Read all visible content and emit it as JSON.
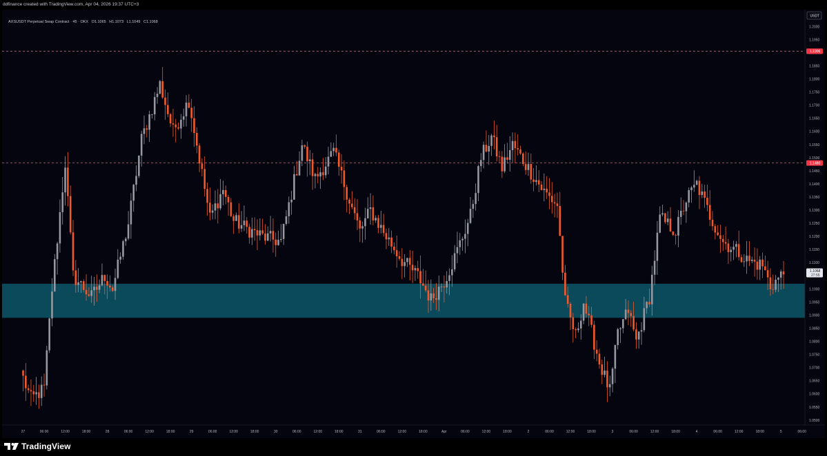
{
  "header": {
    "credit": "ddfinance created with TradingView.com, Apr 04, 2026 19:37 UTC+3"
  },
  "legend": {
    "symbol": "AXSUSDT Perpetual Swap Contract · 45 · OKX",
    "open": "O1.1065",
    "high": "H1.1073",
    "low": "L1.1049",
    "close": "C1.1068"
  },
  "currency_button": "USDT",
  "footer": {
    "brand": "TradingView"
  },
  "colors": {
    "background": "#050510",
    "up": "#9598a1",
    "down": "#f2592a",
    "zone": "#0b4a5a",
    "resistance_tag": "#f23645",
    "neutral_tag": "#f23645",
    "dashed_line": "#d0606a"
  },
  "chart_data": {
    "type": "candlestick",
    "symbol": "AXSUSDT",
    "timeframe": "45",
    "exchange": "OKX",
    "ylim": [
      1.046,
      1.2055
    ],
    "grid": false,
    "y_ticks": [
      "1.2000",
      "1.1950",
      "1.1900",
      "1.1850",
      "1.1800",
      "1.1750",
      "1.1700",
      "1.1650",
      "1.1600",
      "1.1550",
      "1.1500",
      "1.1450",
      "1.1400",
      "1.1350",
      "1.1300",
      "1.1250",
      "1.1200",
      "1.1150",
      "1.1100",
      "1.1050",
      "1.1000",
      "1.0950",
      "1.0900",
      "1.0850",
      "1.0800",
      "1.0750",
      "1.0700",
      "1.0650",
      "1.0600",
      "1.0550",
      "1.0500"
    ],
    "x_ticks": [
      {
        "label": "27",
        "t": 0
      },
      {
        "label": "06:00",
        "t": 8
      },
      {
        "label": "12:00",
        "t": 16
      },
      {
        "label": "18:00",
        "t": 24
      },
      {
        "label": "28",
        "t": 32
      },
      {
        "label": "06:00",
        "t": 40
      },
      {
        "label": "12:00",
        "t": 48
      },
      {
        "label": "18:00",
        "t": 56
      },
      {
        "label": "29",
        "t": 64
      },
      {
        "label": "06:00",
        "t": 72
      },
      {
        "label": "12:00",
        "t": 80
      },
      {
        "label": "18:00",
        "t": 88
      },
      {
        "label": "30",
        "t": 96
      },
      {
        "label": "06:00",
        "t": 104
      },
      {
        "label": "12:00",
        "t": 112
      },
      {
        "label": "18:00",
        "t": 120
      },
      {
        "label": "31",
        "t": 128
      },
      {
        "label": "06:00",
        "t": 136
      },
      {
        "label": "12:00",
        "t": 144
      },
      {
        "label": "18:00",
        "t": 152
      },
      {
        "label": "Apr",
        "t": 160
      },
      {
        "label": "06:00",
        "t": 168
      },
      {
        "label": "12:00",
        "t": 176
      },
      {
        "label": "18:00",
        "t": 184
      },
      {
        "label": "2",
        "t": 192
      },
      {
        "label": "06:00",
        "t": 200
      },
      {
        "label": "12:00",
        "t": 208
      },
      {
        "label": "18:00",
        "t": 216
      },
      {
        "label": "3",
        "t": 224
      },
      {
        "label": "06:00",
        "t": 232
      },
      {
        "label": "12:00",
        "t": 240
      },
      {
        "label": "18:00",
        "t": 248
      },
      {
        "label": "4",
        "t": 256
      },
      {
        "label": "06:00",
        "t": 264
      },
      {
        "label": "12:00",
        "t": 272
      },
      {
        "label": "18:00",
        "t": 280
      },
      {
        "label": "5",
        "t": 288
      },
      {
        "label": "06:00",
        "t": 296
      }
    ],
    "levels": [
      {
        "price": 1.1906,
        "label": "1.1906",
        "style": "dashed"
      },
      {
        "price": 1.148,
        "label": "1.1480",
        "style": "dashed"
      }
    ],
    "zone": {
      "from": 1.089,
      "to": 1.102
    },
    "last_price": {
      "price": 1.1068,
      "label": "1.1068",
      "countdown": "27:55"
    },
    "anchors": [
      [
        0,
        1.066
      ],
      [
        3,
        1.058
      ],
      [
        8,
        1.062
      ],
      [
        11,
        1.1
      ],
      [
        16,
        1.148
      ],
      [
        19,
        1.105
      ],
      [
        26,
        1.097
      ],
      [
        31,
        1.105
      ],
      [
        34,
        1.1
      ],
      [
        40,
        1.125
      ],
      [
        45,
        1.157
      ],
      [
        52,
        1.178
      ],
      [
        57,
        1.16
      ],
      [
        63,
        1.172
      ],
      [
        71,
        1.127
      ],
      [
        76,
        1.138
      ],
      [
        80,
        1.126
      ],
      [
        85,
        1.123
      ],
      [
        91,
        1.12
      ],
      [
        98,
        1.118
      ],
      [
        106,
        1.155
      ],
      [
        111,
        1.142
      ],
      [
        118,
        1.152
      ],
      [
        122,
        1.14
      ],
      [
        128,
        1.122
      ],
      [
        132,
        1.13
      ],
      [
        138,
        1.12
      ],
      [
        144,
        1.111
      ],
      [
        150,
        1.105
      ],
      [
        155,
        1.096
      ],
      [
        160,
        1.103
      ],
      [
        164,
        1.112
      ],
      [
        170,
        1.128
      ],
      [
        174,
        1.15
      ],
      [
        178,
        1.158
      ],
      [
        182,
        1.146
      ],
      [
        186,
        1.155
      ],
      [
        192,
        1.146
      ],
      [
        198,
        1.137
      ],
      [
        203,
        1.132
      ],
      [
        206,
        1.095
      ],
      [
        210,
        1.082
      ],
      [
        213,
        1.095
      ],
      [
        219,
        1.072
      ],
      [
        223,
        1.061
      ],
      [
        226,
        1.083
      ],
      [
        230,
        1.092
      ],
      [
        233,
        1.08
      ],
      [
        238,
        1.097
      ],
      [
        242,
        1.127
      ],
      [
        248,
        1.122
      ],
      [
        252,
        1.134
      ],
      [
        256,
        1.14
      ],
      [
        261,
        1.128
      ],
      [
        266,
        1.118
      ],
      [
        272,
        1.114
      ],
      [
        275,
        1.111
      ],
      [
        281,
        1.109
      ],
      [
        284,
        1.101
      ],
      [
        289,
        1.106
      ]
    ]
  }
}
